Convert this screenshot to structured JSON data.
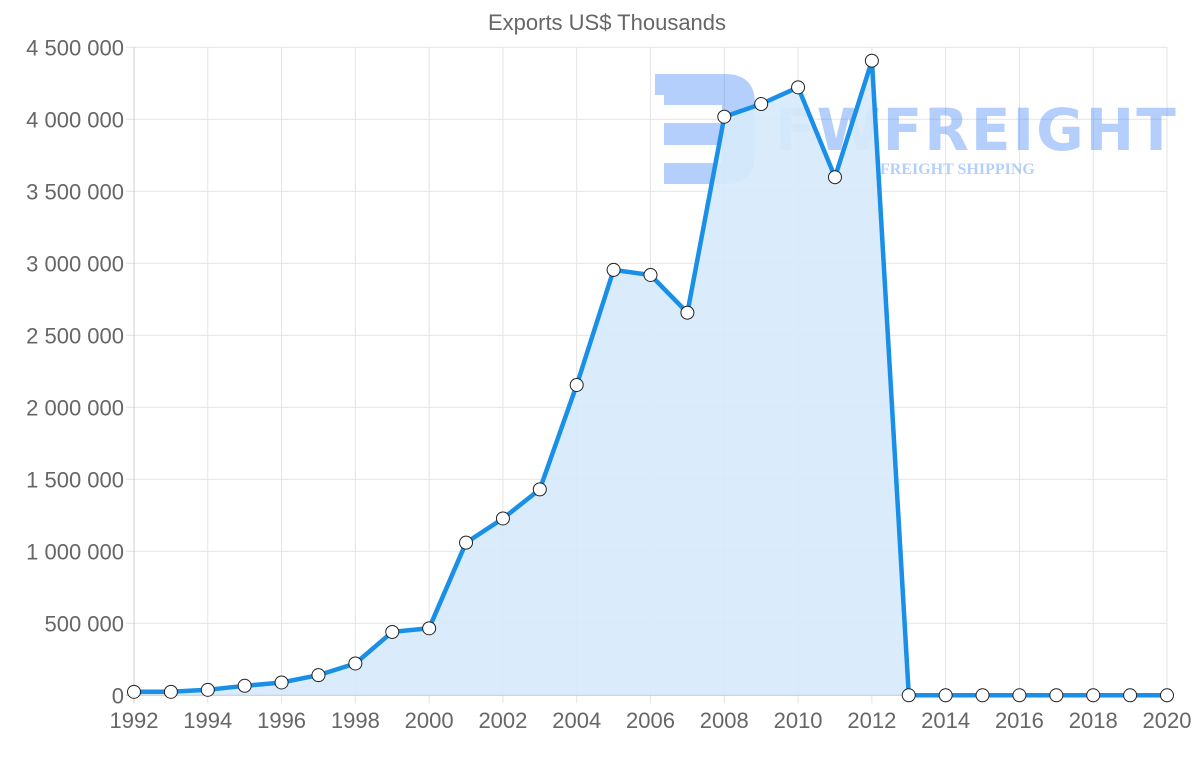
{
  "chart_data": {
    "type": "line",
    "title": "Exports US$ Thousands",
    "xlabel": "",
    "ylabel": "",
    "x": [
      1992,
      1993,
      1994,
      1995,
      1996,
      1997,
      1998,
      1999,
      2000,
      2001,
      2002,
      2003,
      2004,
      2005,
      2006,
      2007,
      2008,
      2009,
      2010,
      2011,
      2012,
      2013,
      2014,
      2015,
      2016,
      2017,
      2018,
      2019,
      2020
    ],
    "series": [
      {
        "name": "Exports US$ Thousands",
        "values": [
          24000,
          24000,
          38000,
          66000,
          89000,
          140000,
          221000,
          440000,
          465000,
          1060000,
          1228000,
          1430000,
          2155000,
          2954000,
          2919000,
          2657000,
          4018000,
          4106000,
          4222000,
          3598000,
          4407000,
          0,
          0,
          0,
          0,
          0,
          0,
          0,
          0
        ],
        "color": "#1a8fe8",
        "fill": "#d6eafb",
        "filled": true
      }
    ],
    "ylim": [
      0,
      4500000
    ],
    "y_ticks": [
      0,
      500000,
      1000000,
      1500000,
      2000000,
      2500000,
      3000000,
      3500000,
      4000000,
      4500000
    ],
    "y_tick_labels": [
      "0",
      "500 000",
      "1 000 000",
      "1 500 000",
      "2 000 000",
      "2 500 000",
      "3 000 000",
      "3 500 000",
      "4 000 000",
      "4 500 000"
    ],
    "x_tick_labels": [
      "1992",
      "1994",
      "1996",
      "1998",
      "2000",
      "2002",
      "2004",
      "2006",
      "2008",
      "2010",
      "2012",
      "2014",
      "2016",
      "2018",
      "2020"
    ],
    "grid": true,
    "legend": null
  },
  "watermark": {
    "brand": "FWFREIGHT",
    "tagline": "FREIGHT SHIPPING",
    "color": "#3b82f6"
  }
}
